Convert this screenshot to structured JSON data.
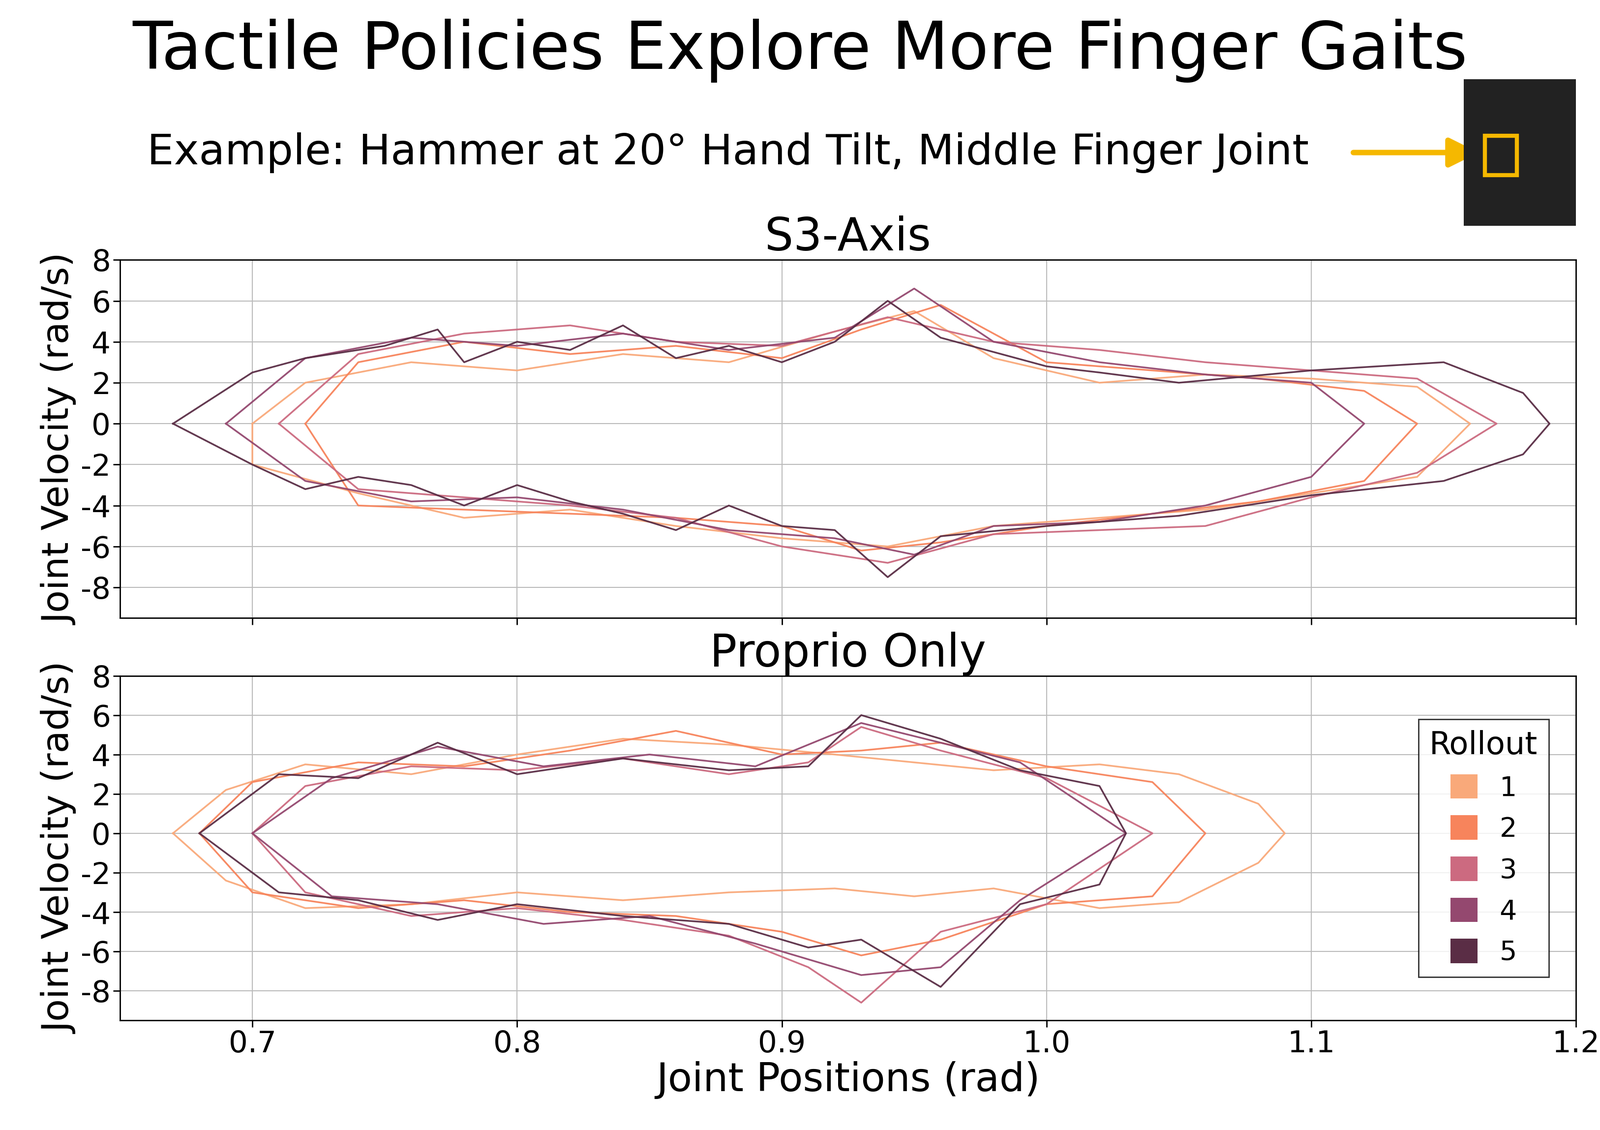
{
  "header": {
    "title": "Tactile Policies Explore More Finger Gaits",
    "subtitle": "Example: Hammer at 20° Hand Tilt, Middle Finger Joint"
  },
  "chart_data": [
    {
      "type": "line",
      "title": "S3-Axis",
      "y_label": "Joint Velocity (rad/s)",
      "xlim": [
        0.65,
        1.2
      ],
      "xticks": [
        0.7,
        0.8,
        0.9,
        1.0,
        1.1,
        1.2
      ],
      "ylim": [
        -9.5,
        8
      ],
      "yticks": [
        -8,
        -6,
        -4,
        -2,
        0,
        2,
        4,
        6,
        8
      ],
      "grid": true,
      "tick_labels": "y",
      "series": [
        {
          "name": "1",
          "color": "#f9a97a",
          "x": [
            0.7,
            0.72,
            0.76,
            0.8,
            0.84,
            0.88,
            0.92,
            0.95,
            0.98,
            1.02,
            1.06,
            1.1,
            1.14,
            1.16,
            1.14,
            1.1,
            1.06,
            1.02,
            0.98,
            0.94,
            0.9,
            0.86,
            0.82,
            0.78,
            0.74,
            0.7,
            0.7
          ],
          "values": [
            0,
            2.0,
            3.0,
            2.6,
            3.4,
            3.0,
            4.5,
            5.5,
            3.2,
            2.0,
            2.4,
            2.2,
            1.8,
            0,
            -2.6,
            -3.4,
            -4.2,
            -4.6,
            -5.0,
            -6.0,
            -5.6,
            -5.0,
            -4.2,
            -4.6,
            -3.4,
            -2.0,
            0
          ]
        },
        {
          "name": "2",
          "color": "#f7845c",
          "x": [
            0.72,
            0.74,
            0.78,
            0.82,
            0.86,
            0.9,
            0.93,
            0.96,
            1.0,
            1.04,
            1.08,
            1.12,
            1.14,
            1.12,
            1.08,
            1.04,
            1.0,
            0.96,
            0.93,
            0.9,
            0.86,
            0.82,
            0.78,
            0.74,
            0.72
          ],
          "values": [
            0,
            3.0,
            4.0,
            3.4,
            3.8,
            3.2,
            4.6,
            5.8,
            3.0,
            2.6,
            2.2,
            1.6,
            0,
            -2.8,
            -3.8,
            -4.4,
            -5.0,
            -5.8,
            -6.2,
            -5.0,
            -4.6,
            -4.4,
            -4.2,
            -4.0,
            0
          ]
        },
        {
          "name": "3",
          "color": "#cc6a80",
          "x": [
            0.71,
            0.74,
            0.78,
            0.82,
            0.86,
            0.9,
            0.94,
            0.98,
            1.02,
            1.06,
            1.1,
            1.14,
            1.17,
            1.14,
            1.1,
            1.06,
            1.02,
            0.98,
            0.94,
            0.9,
            0.86,
            0.82,
            0.78,
            0.74,
            0.71
          ],
          "values": [
            0,
            3.4,
            4.4,
            4.8,
            4.0,
            3.8,
            5.2,
            4.0,
            3.6,
            3.0,
            2.6,
            2.2,
            0,
            -2.4,
            -3.6,
            -5.0,
            -5.2,
            -5.4,
            -6.8,
            -6.0,
            -4.6,
            -4.0,
            -3.6,
            -3.2,
            0
          ]
        },
        {
          "name": "4",
          "color": "#94486f",
          "x": [
            0.69,
            0.72,
            0.76,
            0.8,
            0.84,
            0.88,
            0.92,
            0.95,
            0.98,
            1.02,
            1.06,
            1.1,
            1.12,
            1.1,
            1.06,
            1.02,
            0.98,
            0.95,
            0.92,
            0.88,
            0.84,
            0.8,
            0.76,
            0.72,
            0.69
          ],
          "values": [
            0,
            3.2,
            4.2,
            3.8,
            4.4,
            3.6,
            4.2,
            6.6,
            4.0,
            3.0,
            2.4,
            2.0,
            0,
            -2.6,
            -4.0,
            -4.8,
            -5.0,
            -6.4,
            -5.6,
            -5.2,
            -4.2,
            -3.6,
            -3.8,
            -2.8,
            0
          ]
        },
        {
          "name": "5",
          "color": "#5a2d45",
          "x": [
            0.67,
            0.7,
            0.72,
            0.75,
            0.77,
            0.78,
            0.8,
            0.82,
            0.84,
            0.86,
            0.88,
            0.9,
            0.92,
            0.94,
            0.96,
            0.98,
            1.0,
            1.02,
            1.05,
            1.1,
            1.15,
            1.18,
            1.19,
            1.18,
            1.15,
            1.1,
            1.05,
            1.0,
            0.96,
            0.94,
            0.92,
            0.9,
            0.88,
            0.86,
            0.84,
            0.82,
            0.8,
            0.78,
            0.76,
            0.74,
            0.72,
            0.7,
            0.67
          ],
          "values": [
            0,
            2.5,
            3.2,
            3.8,
            4.6,
            3.0,
            4.0,
            3.6,
            4.8,
            3.2,
            3.8,
            3.0,
            4.0,
            6.0,
            4.2,
            3.5,
            2.8,
            2.5,
            2.0,
            2.6,
            3.0,
            1.5,
            0,
            -1.5,
            -2.8,
            -3.5,
            -4.5,
            -5.0,
            -5.5,
            -7.5,
            -5.2,
            -5.0,
            -4.0,
            -5.2,
            -4.4,
            -3.8,
            -3.0,
            -4.0,
            -3.0,
            -2.6,
            -3.2,
            -2.0,
            0
          ]
        }
      ]
    },
    {
      "type": "line",
      "title": "Proprio Only",
      "x_label": "Joint Positions (rad)",
      "y_label": "Joint Velocity (rad/s)",
      "xlim": [
        0.65,
        1.2
      ],
      "xticks": [
        0.7,
        0.8,
        0.9,
        1.0,
        1.1,
        1.2
      ],
      "ylim": [
        -9.5,
        8
      ],
      "yticks": [
        -8,
        -6,
        -4,
        -2,
        0,
        2,
        4,
        6,
        8
      ],
      "grid": true,
      "legend": "center right",
      "legend_title": "Rollout",
      "series": [
        {
          "name": "1",
          "color": "#f9a97a",
          "x": [
            0.67,
            0.69,
            0.72,
            0.76,
            0.8,
            0.84,
            0.88,
            0.92,
            0.95,
            0.98,
            1.02,
            1.05,
            1.08,
            1.09,
            1.08,
            1.05,
            1.02,
            0.98,
            0.95,
            0.92,
            0.88,
            0.84,
            0.8,
            0.76,
            0.72,
            0.69,
            0.67
          ],
          "values": [
            0,
            2.2,
            3.5,
            3.0,
            4.0,
            4.8,
            4.5,
            4.0,
            3.6,
            3.2,
            3.5,
            3.0,
            1.5,
            0,
            -1.5,
            -3.5,
            -3.8,
            -2.8,
            -3.2,
            -2.8,
            -3.0,
            -3.4,
            -3.0,
            -3.6,
            -3.8,
            -2.4,
            0
          ]
        },
        {
          "name": "2",
          "color": "#f7845c",
          "x": [
            0.68,
            0.7,
            0.74,
            0.78,
            0.82,
            0.86,
            0.9,
            0.93,
            0.96,
            1.0,
            1.04,
            1.06,
            1.04,
            1.0,
            0.96,
            0.93,
            0.9,
            0.86,
            0.82,
            0.78,
            0.74,
            0.7,
            0.68
          ],
          "values": [
            0,
            2.6,
            3.6,
            3.4,
            4.2,
            5.2,
            4.0,
            4.2,
            4.6,
            3.4,
            2.6,
            0,
            -3.2,
            -3.6,
            -5.4,
            -6.2,
            -5.0,
            -4.2,
            -4.0,
            -3.4,
            -3.8,
            -3.0,
            0
          ]
        },
        {
          "name": "3",
          "color": "#cc6a80",
          "x": [
            0.7,
            0.72,
            0.76,
            0.8,
            0.84,
            0.88,
            0.91,
            0.93,
            0.96,
            1.0,
            1.04,
            1.0,
            0.96,
            0.93,
            0.91,
            0.88,
            0.84,
            0.8,
            0.76,
            0.72,
            0.7
          ],
          "values": [
            0,
            2.4,
            3.4,
            3.2,
            3.8,
            3.0,
            3.6,
            5.4,
            4.2,
            2.8,
            0,
            -3.6,
            -5.0,
            -8.6,
            -6.8,
            -5.2,
            -4.4,
            -3.8,
            -4.2,
            -3.0,
            0
          ]
        },
        {
          "name": "4",
          "color": "#94486f",
          "x": [
            0.7,
            0.73,
            0.77,
            0.81,
            0.85,
            0.89,
            0.93,
            0.96,
            0.99,
            1.03,
            0.99,
            0.96,
            0.93,
            0.89,
            0.85,
            0.81,
            0.77,
            0.73,
            0.7
          ],
          "values": [
            0,
            2.8,
            4.4,
            3.4,
            4.0,
            3.4,
            5.6,
            4.6,
            3.6,
            0,
            -3.4,
            -6.8,
            -7.2,
            -5.6,
            -4.2,
            -4.6,
            -3.6,
            -3.2,
            0
          ]
        },
        {
          "name": "5",
          "color": "#5a2d45",
          "x": [
            0.68,
            0.71,
            0.74,
            0.77,
            0.8,
            0.84,
            0.88,
            0.91,
            0.93,
            0.96,
            0.99,
            1.02,
            1.03,
            1.02,
            0.99,
            0.96,
            0.93,
            0.91,
            0.88,
            0.84,
            0.8,
            0.77,
            0.74,
            0.71,
            0.68
          ],
          "values": [
            0,
            3.0,
            2.8,
            4.6,
            3.0,
            3.8,
            3.2,
            3.4,
            6.0,
            4.8,
            3.2,
            2.4,
            0,
            -2.6,
            -3.6,
            -7.8,
            -5.4,
            -5.8,
            -4.6,
            -4.2,
            -3.6,
            -4.4,
            -3.4,
            -3.0,
            0
          ]
        }
      ]
    }
  ]
}
